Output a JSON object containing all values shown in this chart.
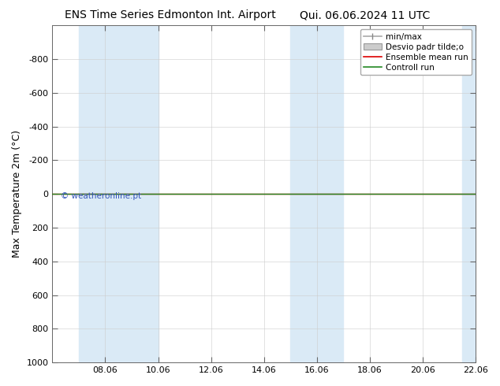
{
  "title": "ENS Time Series Edmonton Int. Airport",
  "title_right": "Qui. 06.06.2024 11 UTC",
  "ylabel": "Max Temperature 2m (°C)",
  "background_color": "#ffffff",
  "plot_bg_color": "#ffffff",
  "ylim_bottom": 1000,
  "ylim_top": -1000,
  "yticks": [
    -800,
    -600,
    -400,
    -200,
    0,
    200,
    400,
    600,
    800,
    1000
  ],
  "xlim": [
    0,
    16
  ],
  "xtick_labels": [
    "08.06",
    "10.06",
    "12.06",
    "14.06",
    "16.06",
    "18.06",
    "20.06",
    "22.06"
  ],
  "xtick_positions": [
    2,
    4,
    6,
    8,
    10,
    12,
    14,
    16
  ],
  "shaded_bands": [
    {
      "x_start": 1.0,
      "x_end": 4.0
    },
    {
      "x_start": 9.0,
      "x_end": 11.0
    },
    {
      "x_start": 15.5,
      "x_end": 16.0
    }
  ],
  "band_color": "#daeaf6",
  "line_color_green": "#228822",
  "line_color_red": "#dd0000",
  "line_y": 0,
  "watermark_text": "© weatheronline.pt",
  "watermark_color": "#3355bb",
  "legend_labels": [
    "min/max",
    "Desvio padr tilde;o",
    "Ensemble mean run",
    "Controll run"
  ],
  "legend_colors_line": [
    "#888888",
    "#aaaaaa",
    "#dd0000",
    "#228822"
  ],
  "title_fontsize": 10,
  "axis_label_fontsize": 9,
  "tick_fontsize": 8,
  "legend_fontsize": 7.5,
  "grid_color": "#cccccc"
}
